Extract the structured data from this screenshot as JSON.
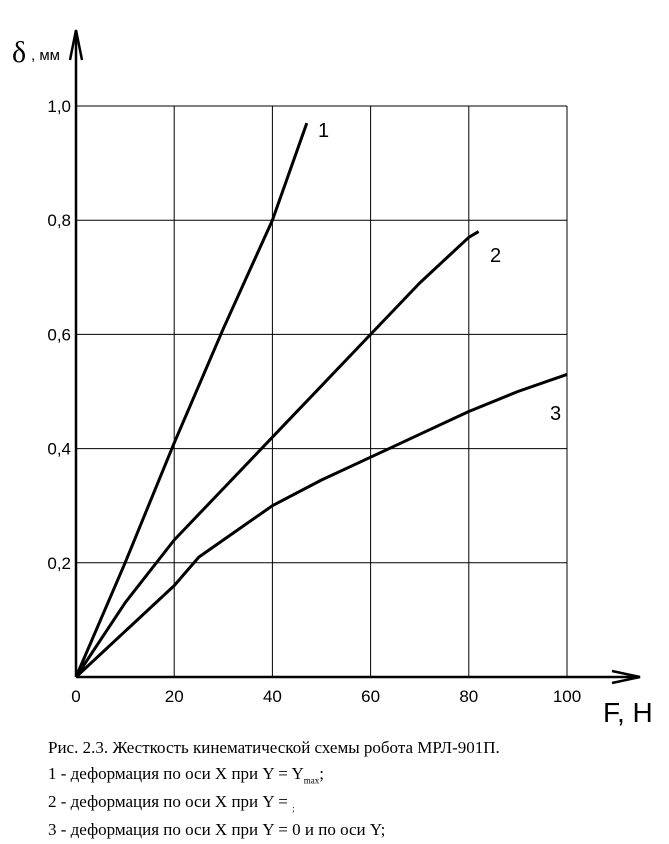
{
  "chart_data": {
    "type": "line",
    "xlabel": "F, H",
    "ylabel_symbol": "δ",
    "ylabel_unit": ", мм",
    "xlim": [
      0,
      100
    ],
    "ylim": [
      0,
      1.0
    ],
    "grid": true,
    "x_ticks": [
      "0",
      "20",
      "40",
      "60",
      "80",
      "100"
    ],
    "y_ticks": [
      "0,2",
      "0,4",
      "0,6",
      "0,8",
      "1,0"
    ],
    "series": [
      {
        "name": "1",
        "x": [
          0,
          10,
          20,
          30,
          40,
          47
        ],
        "y": [
          0,
          0.2,
          0.41,
          0.61,
          0.8,
          0.97
        ]
      },
      {
        "name": "2",
        "x": [
          0,
          10,
          20,
          30,
          40,
          50,
          60,
          70,
          80,
          82
        ],
        "y": [
          0,
          0.13,
          0.24,
          0.33,
          0.42,
          0.51,
          0.6,
          0.69,
          0.77,
          0.78
        ]
      },
      {
        "name": "3",
        "x": [
          0,
          10,
          20,
          25,
          30,
          40,
          50,
          60,
          70,
          80,
          90,
          100
        ],
        "y": [
          0,
          0.08,
          0.16,
          0.21,
          0.24,
          0.3,
          0.345,
          0.385,
          0.425,
          0.465,
          0.5,
          0.53
        ]
      }
    ],
    "color": "#000000"
  },
  "caption": {
    "title": "Рис. 2.3. Жесткость кинематической схемы робота МРЛ-901П.",
    "line1": "1 - деформация по оси X при Y = Y",
    "line1_sub": "max",
    "line1_end": ";",
    "line2": "2 - деформация по оси X при Y = ",
    "line2_sub": ";",
    "line3": "3 - деформация по оси X при Y = 0 и по оси Y;"
  }
}
